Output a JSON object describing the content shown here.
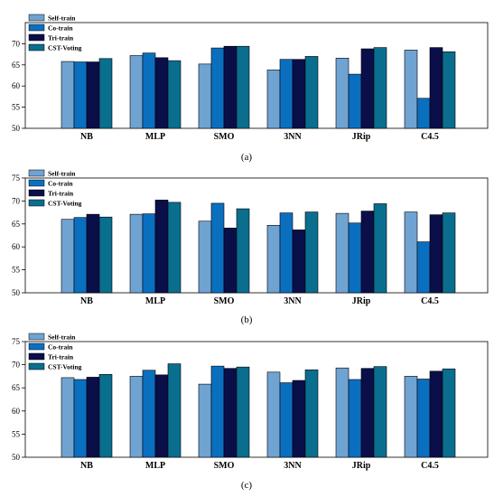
{
  "colors": {
    "Self-train": "#6fa3d2",
    "Co-train": "#0b6fc0",
    "Tri-train": "#0a0f4a",
    "CST-Voting": "#0a6e8f"
  },
  "chart_data": [
    {
      "type": "bar",
      "caption": "(a)",
      "categories": [
        "NB",
        "MLP",
        "SMO",
        "3NN",
        "JRip",
        "C4.5"
      ],
      "ylim": [
        50,
        75
      ],
      "yticks": [
        50,
        55,
        60,
        65,
        70
      ],
      "legend_position": "top-left",
      "grid": false,
      "series": [
        {
          "name": "Self-train",
          "values": [
            65.8,
            67.2,
            65.2,
            63.8,
            66.6,
            68.5
          ]
        },
        {
          "name": "Co-train",
          "values": [
            65.7,
            67.8,
            69.0,
            66.3,
            62.8,
            57.1
          ]
        },
        {
          "name": "Tri-train",
          "values": [
            65.7,
            66.7,
            69.4,
            66.3,
            68.8,
            69.1
          ]
        },
        {
          "name": "CST-Voting",
          "values": [
            66.5,
            66.0,
            69.4,
            67.0,
            69.1,
            68.1
          ]
        }
      ]
    },
    {
      "type": "bar",
      "caption": "(b)",
      "categories": [
        "NB",
        "MLP",
        "SMO",
        "3NN",
        "JRip",
        "C4.5"
      ],
      "ylim": [
        50,
        75
      ],
      "yticks": [
        50,
        55,
        60,
        65,
        70,
        75
      ],
      "legend_position": "top-left",
      "grid": false,
      "series": [
        {
          "name": "Self-train",
          "values": [
            66.0,
            67.1,
            65.6,
            64.7,
            67.3,
            67.6
          ]
        },
        {
          "name": "Co-train",
          "values": [
            66.4,
            67.2,
            69.5,
            67.4,
            65.2,
            61.1
          ]
        },
        {
          "name": "Tri-train",
          "values": [
            67.1,
            70.2,
            64.1,
            63.7,
            67.8,
            67.0
          ]
        },
        {
          "name": "CST-Voting",
          "values": [
            66.5,
            69.7,
            68.3,
            67.6,
            69.4,
            67.4
          ]
        }
      ]
    },
    {
      "type": "bar",
      "caption": "(c)",
      "categories": [
        "NB",
        "MLP",
        "SMO",
        "3NN",
        "JRip",
        "C4.5"
      ],
      "ylim": [
        50,
        75
      ],
      "yticks": [
        50,
        55,
        60,
        65,
        70,
        75
      ],
      "legend_position": "top-left",
      "grid": false,
      "series": [
        {
          "name": "Self-train",
          "values": [
            67.2,
            67.5,
            65.8,
            68.4,
            69.3,
            67.5
          ]
        },
        {
          "name": "Co-train",
          "values": [
            66.8,
            68.8,
            69.7,
            66.1,
            66.8,
            66.9
          ]
        },
        {
          "name": "Tri-train",
          "values": [
            67.3,
            67.8,
            69.2,
            66.6,
            69.2,
            68.6
          ]
        },
        {
          "name": "CST-Voting",
          "values": [
            67.9,
            70.2,
            69.5,
            68.9,
            69.6,
            69.1
          ]
        }
      ]
    }
  ]
}
